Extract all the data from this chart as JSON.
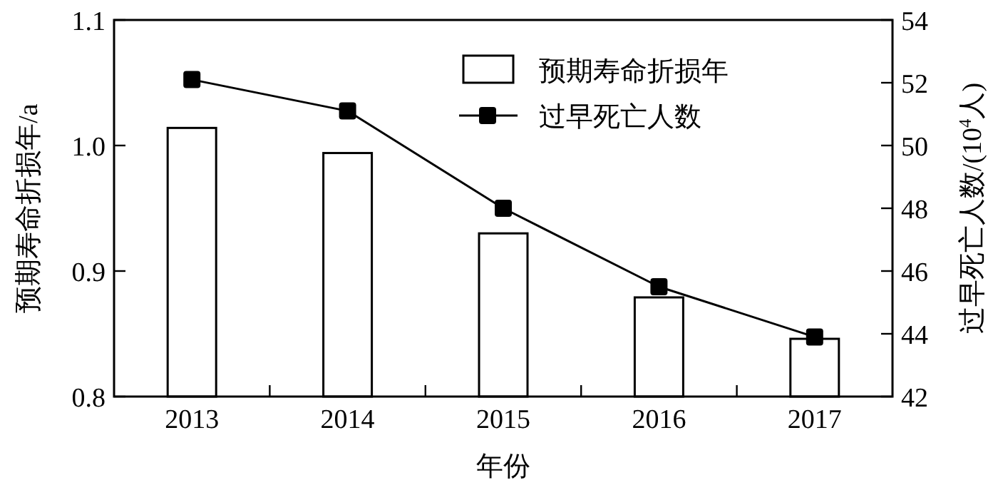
{
  "chart_data": {
    "type": "bar",
    "xlabel": "年份",
    "ylabel": "预期寿命折损年/a",
    "y2label": "过早死亡人数/(10$^{4}$人)",
    "categories": [
      "2013",
      "2014",
      "2015",
      "2016",
      "2017"
    ],
    "series": [
      {
        "name": "预期寿命折损年",
        "color": "#ffffff",
        "values": [
          1.014,
          0.994,
          0.93,
          0.879,
          0.846
        ]
      },
      {
        "name": "过早死亡人数",
        "type": "line",
        "axis": "y2",
        "color": "#000000",
        "marker": "square",
        "values": [
          52.1,
          51.1,
          48.0,
          45.5,
          43.9
        ]
      }
    ],
    "ylim": [
      0.8,
      1.1
    ],
    "yticks": [
      0.8,
      0.9,
      {
        "value": 1.0,
        "label": "1.0"
      },
      1.1
    ],
    "y2lim": [
      42,
      54
    ],
    "y2ticks": [
      42,
      44,
      46,
      48,
      50,
      52,
      54
    ],
    "legend": "top right"
  }
}
